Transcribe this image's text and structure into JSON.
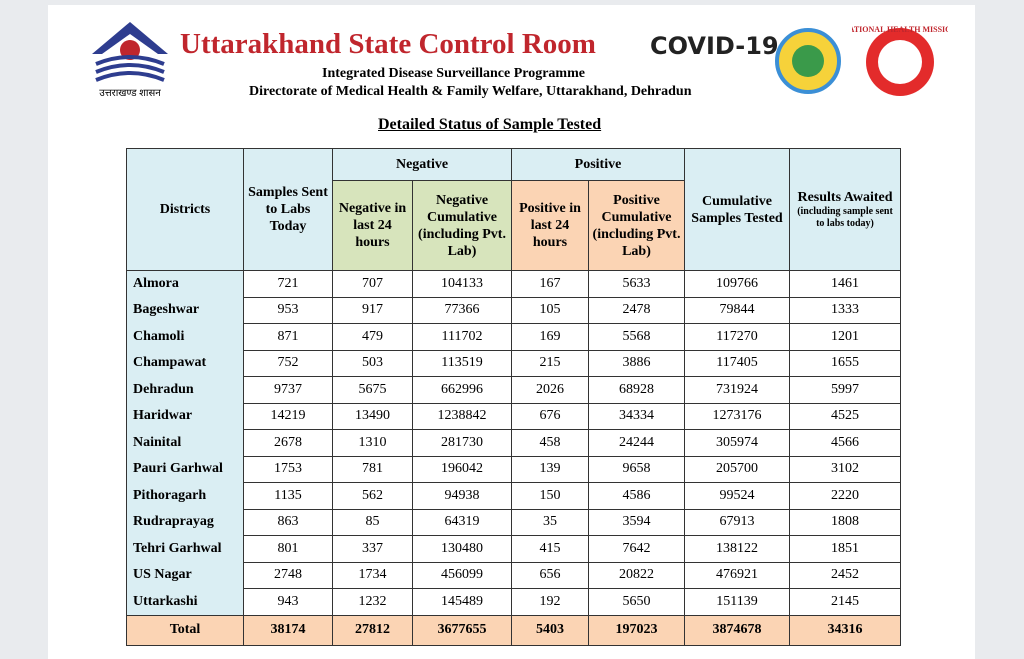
{
  "header": {
    "logo_caption": "उत्तराखण्ड शासन",
    "title": "Uttarakhand State Control Room",
    "subtitle": "Integrated Disease Surveillance Programme",
    "directorate": "Directorate of Medical Health & Family Welfare, Uttarakhand, Dehradun",
    "covid_logo": "COVID-19",
    "nhm_logo": "NATIONAL HEALTH MISSION"
  },
  "caption": "Detailed Status of Sample Tested",
  "table": {
    "headers": {
      "districts": "Districts",
      "samples_sent": "Samples Sent to Labs Today",
      "negative": "Negative",
      "positive": "Positive",
      "negative_24": "Negative in last 24 hours",
      "negative_cumulative": "Negative Cumulative (including Pvt. Lab)",
      "positive_24": "Positive in last 24 hours",
      "positive_cumulative": "Positive Cumulative (including Pvt. Lab)",
      "cumulative_tested": "Cumulative Samples Tested",
      "results_awaited": "Results Awaited",
      "results_awaited_note": "(including sample sent to labs today)"
    },
    "rows": [
      [
        "Almora",
        721,
        707,
        104133,
        167,
        5633,
        109766,
        1461
      ],
      [
        "Bageshwar",
        953,
        917,
        77366,
        105,
        2478,
        79844,
        1333
      ],
      [
        "Chamoli",
        871,
        479,
        111702,
        169,
        5568,
        117270,
        1201
      ],
      [
        "Champawat",
        752,
        503,
        113519,
        215,
        3886,
        117405,
        1655
      ],
      [
        "Dehradun",
        9737,
        5675,
        662996,
        2026,
        68928,
        731924,
        5997
      ],
      [
        "Haridwar",
        14219,
        13490,
        1238842,
        676,
        34334,
        1273176,
        4525
      ],
      [
        "Nainital",
        2678,
        1310,
        281730,
        458,
        24244,
        305974,
        4566
      ],
      [
        "Pauri Garhwal",
        1753,
        781,
        196042,
        139,
        9658,
        205700,
        3102
      ],
      [
        "Pithoragarh",
        1135,
        562,
        94938,
        150,
        4586,
        99524,
        2220
      ],
      [
        "Rudraprayag",
        863,
        85,
        64319,
        35,
        3594,
        67913,
        1808
      ],
      [
        "Tehri Garhwal",
        801,
        337,
        130480,
        415,
        7642,
        138122,
        1851
      ],
      [
        "US Nagar",
        2748,
        1734,
        456099,
        656,
        20822,
        476921,
        2452
      ],
      [
        "Uttarkashi",
        943,
        1232,
        145489,
        192,
        5650,
        151139,
        2145
      ]
    ],
    "total": [
      "Total",
      38174,
      27812,
      3677655,
      5403,
      197023,
      3874678,
      34316
    ]
  }
}
